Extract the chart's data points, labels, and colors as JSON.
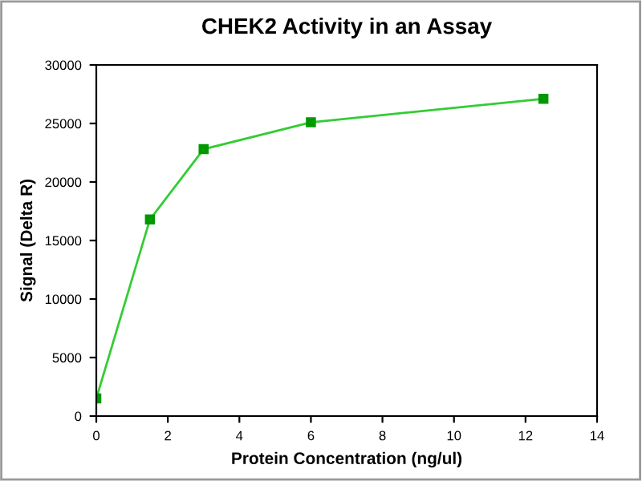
{
  "chart_data": {
    "type": "line",
    "title": "CHEK2 Activity in an Assay",
    "xlabel": "Protein Concentration (ng/ul)",
    "ylabel": "Signal (Delta R)",
    "x": [
      0,
      1.5,
      3,
      6,
      12.5
    ],
    "series": [
      {
        "color": "#33cc33",
        "values": [
          1500,
          16800,
          22800,
          25100,
          27100
        ]
      }
    ],
    "marker": "square",
    "line_style": "solid",
    "xlim": [
      0,
      14
    ],
    "xticks": [
      0,
      2,
      4,
      6,
      8,
      10,
      12,
      14
    ],
    "ylim": [
      0,
      30000
    ],
    "yticks": [
      0,
      5000,
      10000,
      15000,
      20000,
      25000,
      30000
    ],
    "grid": false,
    "legend": false
  }
}
